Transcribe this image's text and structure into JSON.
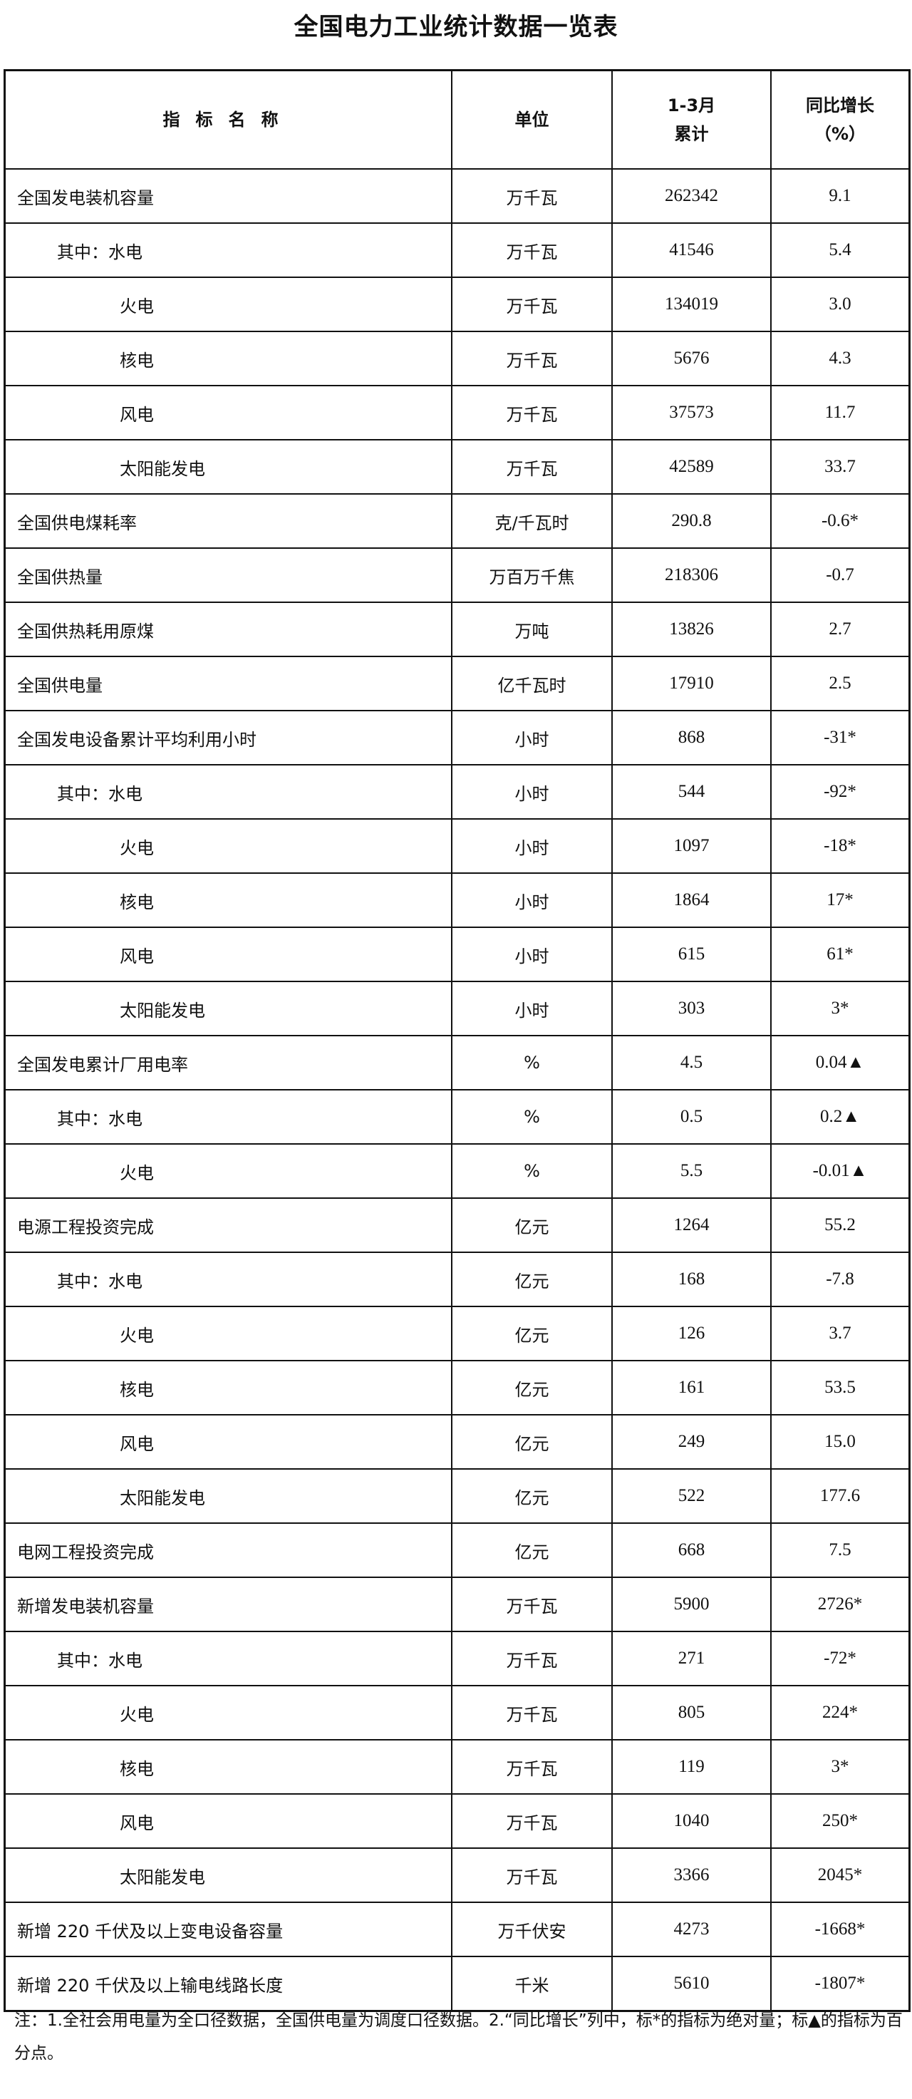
{
  "title": "全国电力工业统计数据一览表",
  "headers": {
    "name": "指标名称",
    "unit": "单位",
    "cumulative_line1": "1-3月",
    "cumulative_line2": "累计",
    "growth_line1": "同比增长",
    "growth_line2": "（%）"
  },
  "rows": [
    {
      "name": "全国发电装机容量",
      "indent": 0,
      "unit": "万千瓦",
      "value": "262342",
      "growth": "9.1"
    },
    {
      "name": "其中：水电",
      "indent": 1,
      "unit": "万千瓦",
      "value": "41546",
      "growth": "5.4"
    },
    {
      "name": "火电",
      "indent": 2,
      "unit": "万千瓦",
      "value": "134019",
      "growth": "3.0"
    },
    {
      "name": "核电",
      "indent": 2,
      "unit": "万千瓦",
      "value": "5676",
      "growth": "4.3"
    },
    {
      "name": "风电",
      "indent": 2,
      "unit": "万千瓦",
      "value": "37573",
      "growth": "11.7"
    },
    {
      "name": "太阳能发电",
      "indent": 2,
      "unit": "万千瓦",
      "value": "42589",
      "growth": "33.7"
    },
    {
      "name": "全国供电煤耗率",
      "indent": 0,
      "unit": "克/千瓦时",
      "value": "290.8",
      "growth": "-0.6*"
    },
    {
      "name": "全国供热量",
      "indent": 0,
      "unit": "万百万千焦",
      "value": "218306",
      "growth": "-0.7"
    },
    {
      "name": "全国供热耗用原煤",
      "indent": 0,
      "unit": "万吨",
      "value": "13826",
      "growth": "2.7"
    },
    {
      "name": "全国供电量",
      "indent": 0,
      "unit": "亿千瓦时",
      "value": "17910",
      "growth": "2.5"
    },
    {
      "name": "全国发电设备累计平均利用小时",
      "indent": 0,
      "unit": "小时",
      "value": "868",
      "growth": "-31*"
    },
    {
      "name": "其中：水电",
      "indent": 1,
      "unit": "小时",
      "value": "544",
      "growth": "-92*"
    },
    {
      "name": "火电",
      "indent": 2,
      "unit": "小时",
      "value": "1097",
      "growth": "-18*"
    },
    {
      "name": "核电",
      "indent": 2,
      "unit": "小时",
      "value": "1864",
      "growth": "17*"
    },
    {
      "name": "风电",
      "indent": 2,
      "unit": "小时",
      "value": "615",
      "growth": "61*"
    },
    {
      "name": "太阳能发电",
      "indent": 2,
      "unit": "小时",
      "value": "303",
      "growth": "3*"
    },
    {
      "name": "全国发电累计厂用电率",
      "indent": 0,
      "unit": "%",
      "value": "4.5",
      "growth": "0.04▲"
    },
    {
      "name": "其中：水电",
      "indent": 1,
      "unit": "%",
      "value": "0.5",
      "growth": "0.2▲"
    },
    {
      "name": "火电",
      "indent": 2,
      "unit": "%",
      "value": "5.5",
      "growth": "-0.01▲"
    },
    {
      "name": "电源工程投资完成",
      "indent": 0,
      "unit": "亿元",
      "value": "1264",
      "growth": "55.2"
    },
    {
      "name": "其中：水电",
      "indent": 1,
      "unit": "亿元",
      "value": "168",
      "growth": "-7.8"
    },
    {
      "name": "火电",
      "indent": 2,
      "unit": "亿元",
      "value": "126",
      "growth": "3.7"
    },
    {
      "name": "核电",
      "indent": 2,
      "unit": "亿元",
      "value": "161",
      "growth": "53.5"
    },
    {
      "name": "风电",
      "indent": 2,
      "unit": "亿元",
      "value": "249",
      "growth": "15.0"
    },
    {
      "name": "太阳能发电",
      "indent": 2,
      "unit": "亿元",
      "value": "522",
      "growth": "177.6"
    },
    {
      "name": "电网工程投资完成",
      "indent": 0,
      "unit": "亿元",
      "value": "668",
      "growth": "7.5"
    },
    {
      "name": "新增发电装机容量",
      "indent": 0,
      "unit": "万千瓦",
      "value": "5900",
      "growth": "2726*"
    },
    {
      "name": "其中：水电",
      "indent": 1,
      "unit": "万千瓦",
      "value": "271",
      "growth": "-72*"
    },
    {
      "name": "火电",
      "indent": 2,
      "unit": "万千瓦",
      "value": "805",
      "growth": "224*"
    },
    {
      "name": "核电",
      "indent": 2,
      "unit": "万千瓦",
      "value": "119",
      "growth": "3*"
    },
    {
      "name": "风电",
      "indent": 2,
      "unit": "万千瓦",
      "value": "1040",
      "growth": "250*"
    },
    {
      "name": "太阳能发电",
      "indent": 2,
      "unit": "万千瓦",
      "value": "3366",
      "growth": "2045*"
    },
    {
      "name": "新增 220 千伏及以上变电设备容量",
      "indent": 0,
      "unit": "万千伏安",
      "value": "4273",
      "growth": "-1668*"
    },
    {
      "name": "新增 220 千伏及以上输电线路长度",
      "indent": 0,
      "unit": "千米",
      "value": "5610",
      "growth": "-1807*"
    }
  ],
  "note": "注：1.全社会用电量为全口径数据，全国供电量为调度口径数据。2.“同比增长”列中，标*的指标为绝对量；标▲的指标为百分点。"
}
